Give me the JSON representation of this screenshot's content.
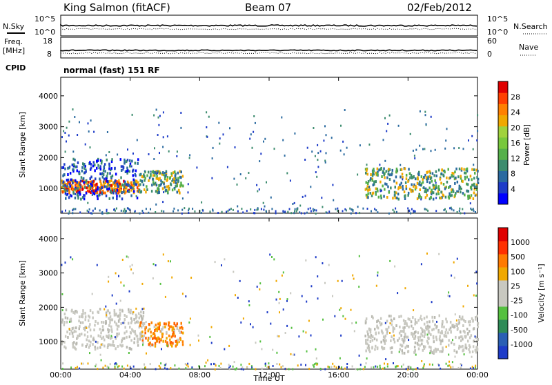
{
  "header": {
    "station": "King Salmon (fitACF)",
    "beam": "Beam 07",
    "date": "02/Feb/2012"
  },
  "side_labels": {
    "nsky": "N.Sky",
    "nsearch": "N.Search",
    "freq": "Freq.",
    "mhz": "[MHz]",
    "nave": "Nave",
    "cpid": "CPID"
  },
  "cpid_text": "normal (fast) 151 RF",
  "noise_panel": {
    "left_ticks": [
      "10^5",
      "10^0"
    ],
    "right_ticks": [
      "10^5",
      "10^0"
    ]
  },
  "freq_panel": {
    "left_ticks": [
      "18",
      "8"
    ],
    "right_ticks": [
      "60",
      "0"
    ]
  },
  "colors": {
    "track": "#000000",
    "axis": "#000000",
    "gray_velocity": "#c8c8c0"
  },
  "chart_data": [
    {
      "type": "heatmap",
      "name_key": "power",
      "ylabel": "Slant Range [km]",
      "yticks": [
        "4000",
        "3000",
        "2000",
        "1000"
      ],
      "ylim": [
        200,
        4600
      ],
      "xlim": [
        0,
        24
      ],
      "colorbar_label": "Power [dB]",
      "colorbar_ticks": [
        "28",
        "24",
        "20",
        "16",
        "12",
        "8",
        "4"
      ],
      "colorbar_colors": [
        "#0000ff",
        "#1e3cc8",
        "#2a6aa0",
        "#3c8c6e",
        "#55b04a",
        "#78c83c",
        "#a0d23c",
        "#f0a800",
        "#ff8000",
        "#ff4000",
        "#e00000"
      ],
      "bands": [
        {
          "t0": 0.0,
          "t1": 4.5,
          "r_lo": 900,
          "r_hi": 1300,
          "level": "high"
        },
        {
          "t0": 0.0,
          "t1": 4.5,
          "r_lo": 700,
          "r_hi": 2000,
          "level": "low"
        },
        {
          "t0": 4.5,
          "t1": 7.0,
          "r_lo": 900,
          "r_hi": 1600,
          "level": "mid"
        },
        {
          "t0": 17.5,
          "t1": 24.0,
          "r_lo": 700,
          "r_hi": 1700,
          "level": "mid"
        }
      ]
    },
    {
      "type": "heatmap",
      "name_key": "velocity",
      "ylabel": "Slant Range [km]",
      "yticks": [
        "4000",
        "3000",
        "2000",
        "1000"
      ],
      "ylim": [
        200,
        4600
      ],
      "xlim": [
        0,
        24
      ],
      "xticks": [
        "00:00",
        "04:00",
        "08:00",
        "12:00",
        "16:00",
        "20:00",
        "00:00"
      ],
      "xlabel": "Time UT",
      "colorbar_label": "Velocity [m s⁻¹]",
      "colorbar_ticks": [
        "1000",
        "500",
        "100",
        "25",
        "-25",
        "-100",
        "-500",
        "-1000"
      ],
      "colorbar_colors": [
        "#1e3cc8",
        "#2a5fb4",
        "#2e8b57",
        "#55c040",
        "#c8c8c0",
        "#c8c8c0",
        "#f0a800",
        "#ff7a00",
        "#ff3000",
        "#e00000"
      ],
      "bands": [
        {
          "t0": 0.0,
          "t1": 4.8,
          "r_lo": 800,
          "r_hi": 2000,
          "level": "gray"
        },
        {
          "t0": 4.5,
          "t1": 7.0,
          "r_lo": 900,
          "r_hi": 1600,
          "level": "orange"
        },
        {
          "t0": 17.5,
          "t1": 24.0,
          "r_lo": 700,
          "r_hi": 1800,
          "level": "gray"
        }
      ]
    }
  ]
}
